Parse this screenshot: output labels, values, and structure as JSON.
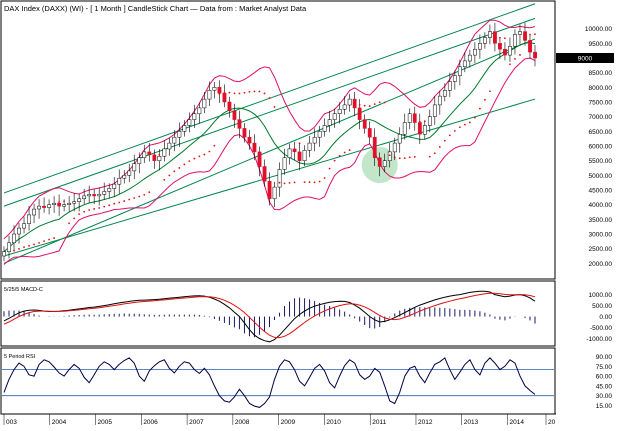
{
  "header": {
    "title": "DAX Index (DAXX) (WI) - [ 1 Month ] CandleStick Chart — Data from : Market Analyst Data"
  },
  "colors": {
    "background": "#ffffff",
    "frame": "#000000",
    "candle_up": "#ffffff",
    "candle_down": "#e0102b",
    "bollinger": "#e0106a",
    "moving_average": "#007a28",
    "trend_channel": "#00854a",
    "psar_dots": "#e01010",
    "macd_line": "#000000",
    "macd_signal": "#e01010",
    "macd_hist": "#1a1a66",
    "rsi_line": "#000044",
    "rsi_levels": "#2a5fb0",
    "highlight_circle": "#8fd19e",
    "axis_label_bg": "#000000",
    "axis_label_text": "#ffffff"
  },
  "chart_data": [
    {
      "type": "candlestick",
      "title": "DAX Index (DAXX) (WI) - [ 1 Month ] CandleStick Chart — Data from : Market Analyst Data",
      "interval": "1 Month",
      "x_labels": [
        "003",
        "2004",
        "2005",
        "2006",
        "2007",
        "2008",
        "2009",
        "2010",
        "2011",
        "2012",
        "2013",
        "2014",
        "20"
      ],
      "y_ticks": [
        "10000.00",
        "9500.00",
        "9000.00",
        "8500.00",
        "8000.00",
        "7500.00",
        "7000.00",
        "6500.00",
        "6000.00",
        "5500.00",
        "5000.00",
        "4500.00",
        "4000.00",
        "3500.00",
        "3000.00",
        "2500.00",
        "2000.00"
      ],
      "ylim": [
        1500,
        10500
      ],
      "current_value": "9000",
      "closes": [
        2400,
        2700,
        3000,
        3200,
        3350,
        3650,
        3850,
        3950,
        3900,
        4000,
        4050,
        3950,
        4000,
        4050,
        4100,
        4200,
        4300,
        4350,
        4300,
        4350,
        4450,
        4550,
        4700,
        4900,
        5000,
        5150,
        5400,
        5600,
        5800,
        5700,
        5500,
        5650,
        5900,
        6100,
        6300,
        6500,
        6700,
        6900,
        7100,
        7300,
        7600,
        7900,
        8000,
        7800,
        7500,
        7200,
        6900,
        6600,
        6300,
        6100,
        5800,
        5300,
        4800,
        4200,
        4600,
        5200,
        5600,
        5900,
        5800,
        5500,
        5850,
        6100,
        6300,
        6500,
        6700,
        6900,
        7100,
        7250,
        7400,
        7600,
        7300,
        6900,
        6600,
        6300,
        5600,
        5300,
        5500,
        5800,
        6100,
        6400,
        6800,
        7100,
        6800,
        6400,
        6700,
        7000,
        7400,
        7700,
        7900,
        8200,
        8400,
        8700,
        8900,
        9100,
        9300,
        9500,
        9700,
        9900,
        9500,
        9300,
        9100,
        9400,
        9800,
        9900,
        9600,
        9200,
        9000
      ],
      "highlight": "2011 low"
    },
    {
      "type": "line",
      "title": "5/25/5 MACD-C",
      "y_ticks": [
        "1000.00",
        "500.00",
        "0.00",
        "-500.00",
        "-1000.00"
      ],
      "ylim": [
        -1250,
        1300
      ],
      "series": [
        {
          "values": [
            -200,
            -80,
            50,
            170,
            250,
            290,
            300,
            280,
            250,
            230,
            230,
            240,
            260,
            290,
            320,
            350,
            380,
            410,
            430,
            460,
            500,
            540,
            580,
            620,
            660,
            690,
            720,
            740,
            750,
            760,
            770,
            790,
            810,
            840,
            860,
            880,
            900,
            920,
            940,
            950,
            930,
            880,
            800,
            700,
            560,
            400,
            200,
            0,
            -300,
            -600,
            -850,
            -1000,
            -1100,
            -1150,
            -1050,
            -850,
            -600,
            -350,
            -100,
            100,
            250,
            380,
            470,
            540,
            600,
            650,
            680,
            700,
            690,
            640,
            520,
            380,
            200,
            0,
            -150,
            -250,
            -220,
            -150,
            -50,
            60,
            180,
            300,
            420,
            520,
            600,
            680,
            760,
            820,
            880,
            930,
            970,
            1000,
            1050,
            1100,
            1130,
            1150,
            1150,
            1120,
            1000,
            950,
            900,
            930,
            980,
            1000,
            950,
            850,
            700
          ]
        },
        {
          "values": [
            -350,
            -250,
            -120,
            0,
            100,
            180,
            230,
            250,
            250,
            240,
            235,
            235,
            245,
            260,
            280,
            305,
            330,
            355,
            380,
            405,
            435,
            470,
            505,
            540,
            575,
            610,
            640,
            665,
            685,
            705,
            720,
            740,
            760,
            780,
            805,
            825,
            845,
            865,
            885,
            905,
            910,
            900,
            870,
            820,
            740,
            640,
            510,
            360,
            180,
            -40,
            -260,
            -480,
            -680,
            -850,
            -950,
            -960,
            -900,
            -780,
            -620,
            -440,
            -270,
            -110,
            30,
            150,
            260,
            350,
            430,
            500,
            550,
            580,
            570,
            520,
            440,
            330,
            190,
            50,
            -60,
            -120,
            -140,
            -110,
            -40,
            50,
            150,
            250,
            340,
            420,
            500,
            570,
            640,
            700,
            760,
            810,
            860,
            910,
            960,
            1000,
            1040,
            1060,
            1060,
            1040,
            1010,
            990,
            990,
            1000,
            990,
            960,
            900
          ]
        }
      ]
    },
    {
      "type": "line",
      "title": "5 Period RSI",
      "y_ticks": [
        "90.00",
        "75.00",
        "60.00",
        "45.00",
        "30.00",
        "15.00"
      ],
      "ylim": [
        5,
        97
      ],
      "levels": [
        70,
        30
      ],
      "series": [
        {
          "values": [
            35,
            55,
            70,
            80,
            75,
            62,
            60,
            78,
            85,
            82,
            74,
            65,
            60,
            70,
            78,
            72,
            58,
            50,
            62,
            75,
            82,
            78,
            70,
            78,
            84,
            88,
            80,
            60,
            52,
            68,
            76,
            82,
            85,
            72,
            65,
            75,
            82,
            80,
            70,
            64,
            72,
            62,
            45,
            30,
            22,
            20,
            28,
            40,
            30,
            18,
            14,
            12,
            18,
            28,
            55,
            75,
            85,
            82,
            70,
            52,
            45,
            58,
            72,
            78,
            68,
            50,
            42,
            60,
            76,
            85,
            80,
            62,
            55,
            60,
            72,
            66,
            45,
            22,
            18,
            35,
            60,
            72,
            75,
            60,
            50,
            65,
            78,
            82,
            88,
            70,
            55,
            66,
            78,
            85,
            70,
            62,
            80,
            88,
            80,
            70,
            75,
            85,
            80,
            60,
            45,
            38,
            32
          ]
        }
      ]
    }
  ]
}
